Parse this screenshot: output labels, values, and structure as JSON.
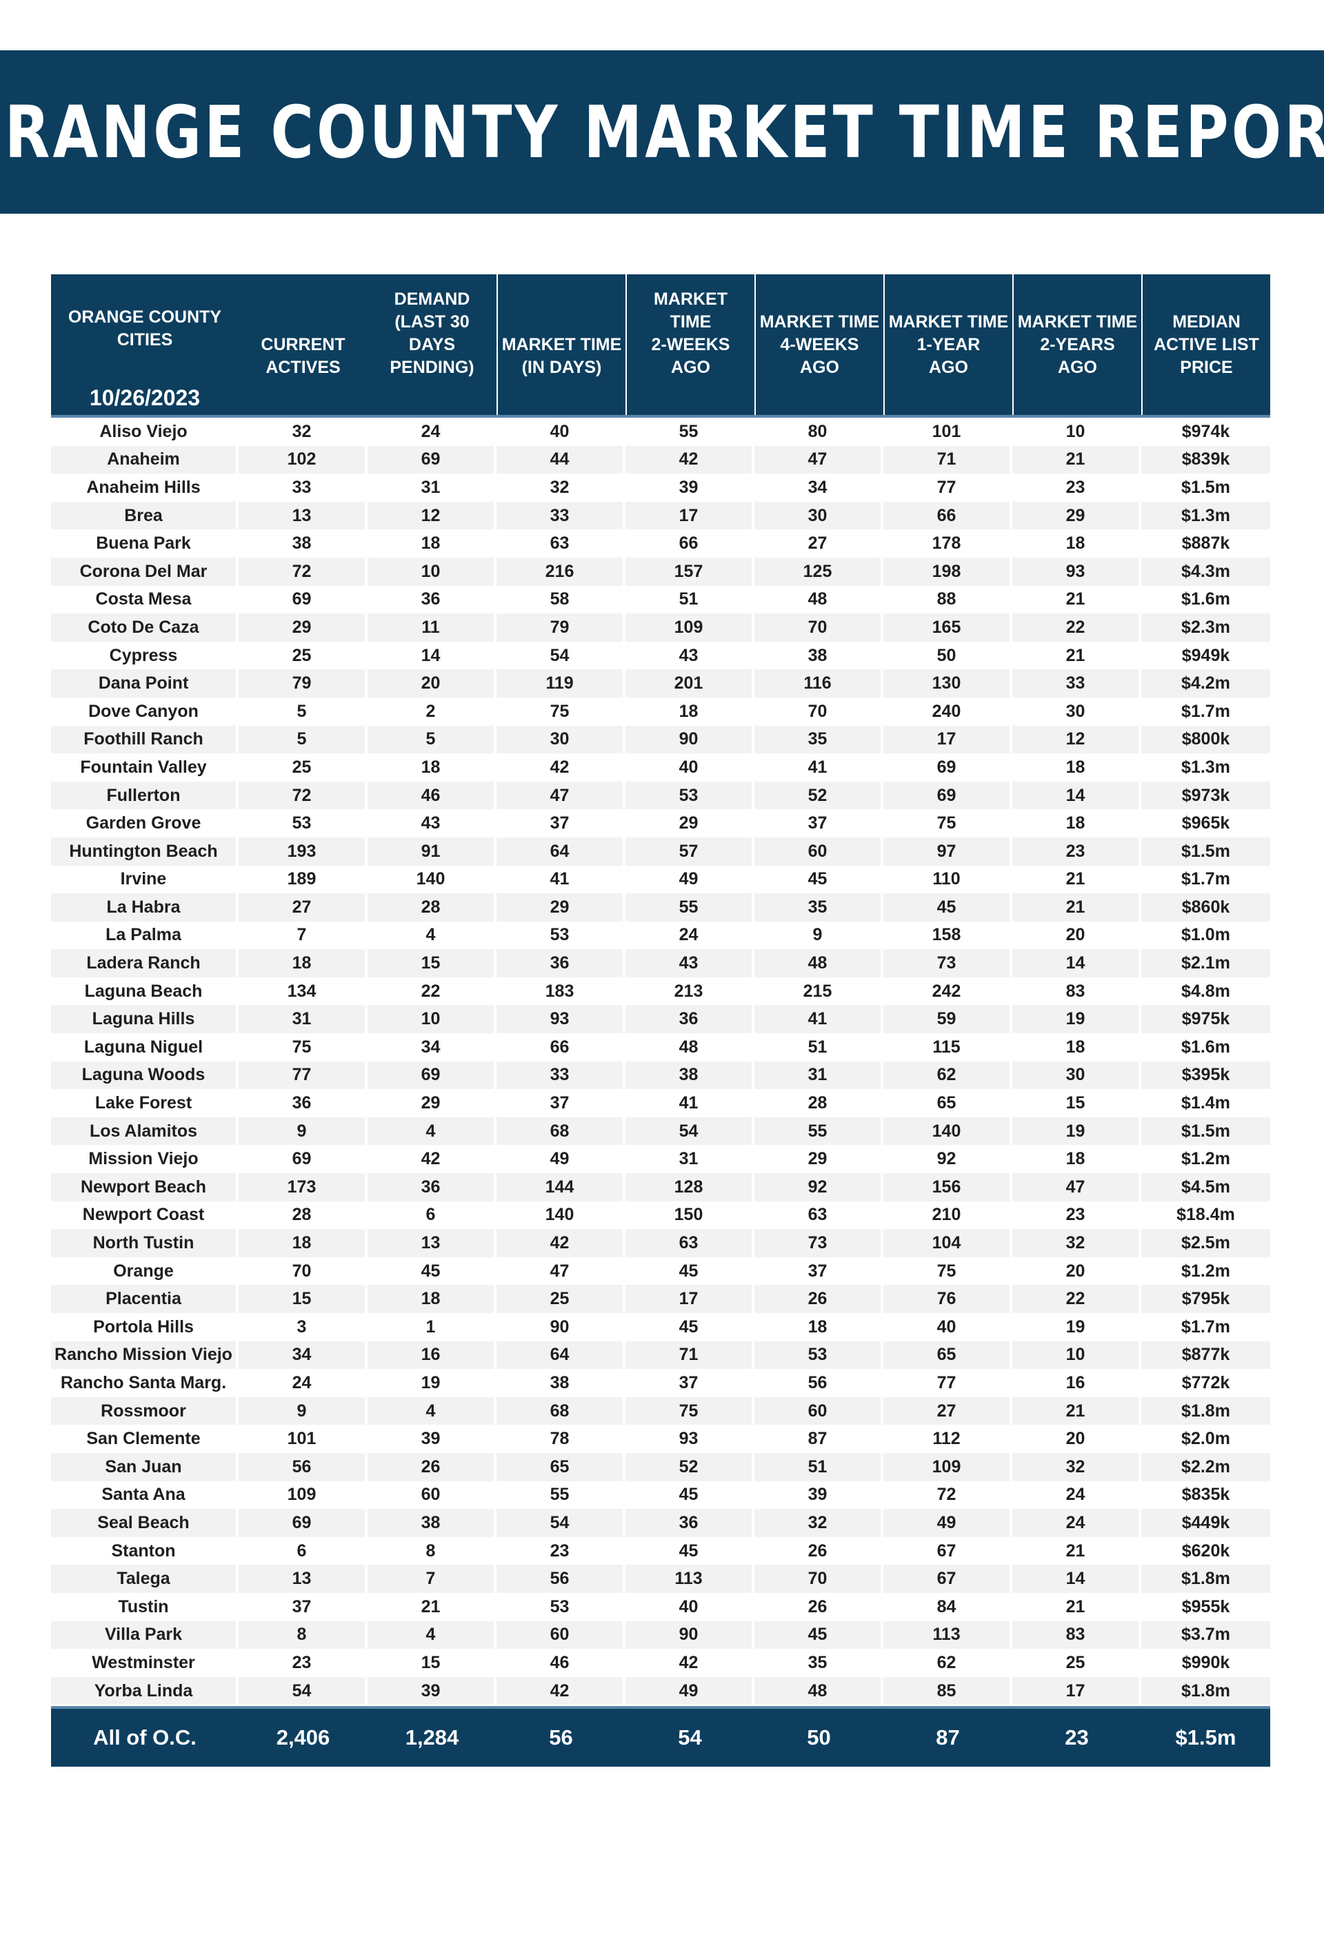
{
  "title": "ORANGE COUNTY MARKET TIME REPORT",
  "date": "10/26/2023",
  "colors": {
    "navy": "#0d3e5e",
    "accent": "#5b86ad",
    "stripe": "#f2f2f2"
  },
  "columns": [
    [
      "ORANGE COUNTY",
      "CITIES"
    ],
    [
      "CURRENT",
      "ACTIVES"
    ],
    [
      "DEMAND",
      "(LAST 30",
      "DAYS",
      "PENDING)"
    ],
    [
      "MARKET TIME",
      "(IN DAYS)"
    ],
    [
      "MARKET",
      "TIME",
      "2-WEEKS",
      "AGO"
    ],
    [
      "MARKET TIME",
      "4-WEEKS",
      "AGO"
    ],
    [
      "MARKET TIME",
      "1-YEAR",
      "AGO"
    ],
    [
      "MARKET TIME",
      "2-YEARS",
      "AGO"
    ],
    [
      "MEDIAN",
      "ACTIVE LIST",
      "PRICE"
    ]
  ],
  "rows": [
    [
      "Aliso Viejo",
      "32",
      "24",
      "40",
      "55",
      "80",
      "101",
      "10",
      "$974k"
    ],
    [
      "Anaheim",
      "102",
      "69",
      "44",
      "42",
      "47",
      "71",
      "21",
      "$839k"
    ],
    [
      "Anaheim Hills",
      "33",
      "31",
      "32",
      "39",
      "34",
      "77",
      "23",
      "$1.5m"
    ],
    [
      "Brea",
      "13",
      "12",
      "33",
      "17",
      "30",
      "66",
      "29",
      "$1.3m"
    ],
    [
      "Buena Park",
      "38",
      "18",
      "63",
      "66",
      "27",
      "178",
      "18",
      "$887k"
    ],
    [
      "Corona Del Mar",
      "72",
      "10",
      "216",
      "157",
      "125",
      "198",
      "93",
      "$4.3m"
    ],
    [
      "Costa Mesa",
      "69",
      "36",
      "58",
      "51",
      "48",
      "88",
      "21",
      "$1.6m"
    ],
    [
      "Coto De Caza",
      "29",
      "11",
      "79",
      "109",
      "70",
      "165",
      "22",
      "$2.3m"
    ],
    [
      "Cypress",
      "25",
      "14",
      "54",
      "43",
      "38",
      "50",
      "21",
      "$949k"
    ],
    [
      "Dana Point",
      "79",
      "20",
      "119",
      "201",
      "116",
      "130",
      "33",
      "$4.2m"
    ],
    [
      "Dove Canyon",
      "5",
      "2",
      "75",
      "18",
      "70",
      "240",
      "30",
      "$1.7m"
    ],
    [
      "Foothill Ranch",
      "5",
      "5",
      "30",
      "90",
      "35",
      "17",
      "12",
      "$800k"
    ],
    [
      "Fountain Valley",
      "25",
      "18",
      "42",
      "40",
      "41",
      "69",
      "18",
      "$1.3m"
    ],
    [
      "Fullerton",
      "72",
      "46",
      "47",
      "53",
      "52",
      "69",
      "14",
      "$973k"
    ],
    [
      "Garden Grove",
      "53",
      "43",
      "37",
      "29",
      "37",
      "75",
      "18",
      "$965k"
    ],
    [
      "Huntington Beach",
      "193",
      "91",
      "64",
      "57",
      "60",
      "97",
      "23",
      "$1.5m"
    ],
    [
      "Irvine",
      "189",
      "140",
      "41",
      "49",
      "45",
      "110",
      "21",
      "$1.7m"
    ],
    [
      "La Habra",
      "27",
      "28",
      "29",
      "55",
      "35",
      "45",
      "21",
      "$860k"
    ],
    [
      "La Palma",
      "7",
      "4",
      "53",
      "24",
      "9",
      "158",
      "20",
      "$1.0m"
    ],
    [
      "Ladera Ranch",
      "18",
      "15",
      "36",
      "43",
      "48",
      "73",
      "14",
      "$2.1m"
    ],
    [
      "Laguna Beach",
      "134",
      "22",
      "183",
      "213",
      "215",
      "242",
      "83",
      "$4.8m"
    ],
    [
      "Laguna Hills",
      "31",
      "10",
      "93",
      "36",
      "41",
      "59",
      "19",
      "$975k"
    ],
    [
      "Laguna Niguel",
      "75",
      "34",
      "66",
      "48",
      "51",
      "115",
      "18",
      "$1.6m"
    ],
    [
      "Laguna Woods",
      "77",
      "69",
      "33",
      "38",
      "31",
      "62",
      "30",
      "$395k"
    ],
    [
      "Lake Forest",
      "36",
      "29",
      "37",
      "41",
      "28",
      "65",
      "15",
      "$1.4m"
    ],
    [
      "Los Alamitos",
      "9",
      "4",
      "68",
      "54",
      "55",
      "140",
      "19",
      "$1.5m"
    ],
    [
      "Mission Viejo",
      "69",
      "42",
      "49",
      "31",
      "29",
      "92",
      "18",
      "$1.2m"
    ],
    [
      "Newport Beach",
      "173",
      "36",
      "144",
      "128",
      "92",
      "156",
      "47",
      "$4.5m"
    ],
    [
      "Newport Coast",
      "28",
      "6",
      "140",
      "150",
      "63",
      "210",
      "23",
      "$18.4m"
    ],
    [
      "North Tustin",
      "18",
      "13",
      "42",
      "63",
      "73",
      "104",
      "32",
      "$2.5m"
    ],
    [
      "Orange",
      "70",
      "45",
      "47",
      "45",
      "37",
      "75",
      "20",
      "$1.2m"
    ],
    [
      "Placentia",
      "15",
      "18",
      "25",
      "17",
      "26",
      "76",
      "22",
      "$795k"
    ],
    [
      "Portola Hills",
      "3",
      "1",
      "90",
      "45",
      "18",
      "40",
      "19",
      "$1.7m"
    ],
    [
      "Rancho Mission Viejo",
      "34",
      "16",
      "64",
      "71",
      "53",
      "65",
      "10",
      "$877k"
    ],
    [
      "Rancho Santa Marg.",
      "24",
      "19",
      "38",
      "37",
      "56",
      "77",
      "16",
      "$772k"
    ],
    [
      "Rossmoor",
      "9",
      "4",
      "68",
      "75",
      "60",
      "27",
      "21",
      "$1.8m"
    ],
    [
      "San Clemente",
      "101",
      "39",
      "78",
      "93",
      "87",
      "112",
      "20",
      "$2.0m"
    ],
    [
      "San Juan",
      "56",
      "26",
      "65",
      "52",
      "51",
      "109",
      "32",
      "$2.2m"
    ],
    [
      "Santa Ana",
      "109",
      "60",
      "55",
      "45",
      "39",
      "72",
      "24",
      "$835k"
    ],
    [
      "Seal Beach",
      "69",
      "38",
      "54",
      "36",
      "32",
      "49",
      "24",
      "$449k"
    ],
    [
      "Stanton",
      "6",
      "8",
      "23",
      "45",
      "26",
      "67",
      "21",
      "$620k"
    ],
    [
      "Talega",
      "13",
      "7",
      "56",
      "113",
      "70",
      "67",
      "14",
      "$1.8m"
    ],
    [
      "Tustin",
      "37",
      "21",
      "53",
      "40",
      "26",
      "84",
      "21",
      "$955k"
    ],
    [
      "Villa Park",
      "8",
      "4",
      "60",
      "90",
      "45",
      "113",
      "83",
      "$3.7m"
    ],
    [
      "Westminster",
      "23",
      "15",
      "46",
      "42",
      "35",
      "62",
      "25",
      "$990k"
    ],
    [
      "Yorba Linda",
      "54",
      "39",
      "42",
      "49",
      "48",
      "85",
      "17",
      "$1.8m"
    ]
  ],
  "total": [
    "All of O.C.",
    "2,406",
    "1,284",
    "56",
    "54",
    "50",
    "87",
    "23",
    "$1.5m"
  ]
}
